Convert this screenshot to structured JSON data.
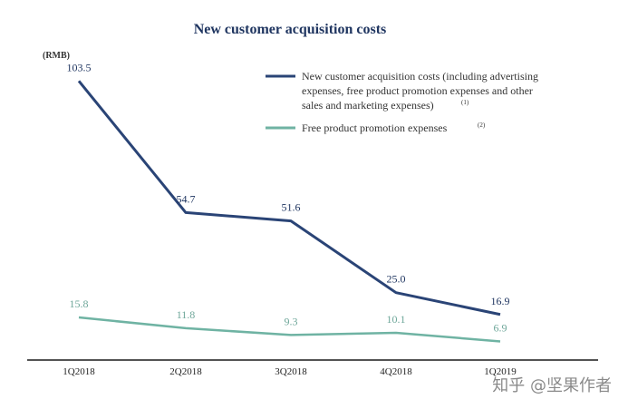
{
  "chart_data": {
    "type": "line",
    "title": "New customer acquisition costs",
    "unit_label": "(RMB)",
    "categories": [
      "1Q2018",
      "2Q2018",
      "3Q2018",
      "4Q2018",
      "1Q2019"
    ],
    "series": [
      {
        "name": "New customer acquisition costs (including advertising expenses, free product promotion expenses and other sales and marketing expenses)",
        "legend_lines": [
          "New customer acquisition costs (including advertising",
          "expenses, free product promotion expenses and other",
          "sales and marketing expenses)"
        ],
        "footnote": "(1)",
        "color": "#2a4476",
        "values": [
          103.5,
          54.7,
          51.6,
          25.0,
          16.9
        ],
        "labels": [
          "103.5",
          "54.7",
          "51.6",
          "25.0",
          "16.9"
        ]
      },
      {
        "name": "Free product promotion expenses",
        "legend_lines": [
          "Free product promotion expenses"
        ],
        "footnote": "(2)",
        "color": "#6fb3a3",
        "values": [
          15.8,
          11.8,
          9.3,
          10.1,
          6.9
        ],
        "labels": [
          "15.8",
          "11.8",
          "9.3",
          "10.1",
          "6.9"
        ]
      }
    ],
    "ylim": [
      0,
      110
    ],
    "legend_position": "top-right",
    "grid": false
  },
  "watermark": "知乎 @坚果作者"
}
